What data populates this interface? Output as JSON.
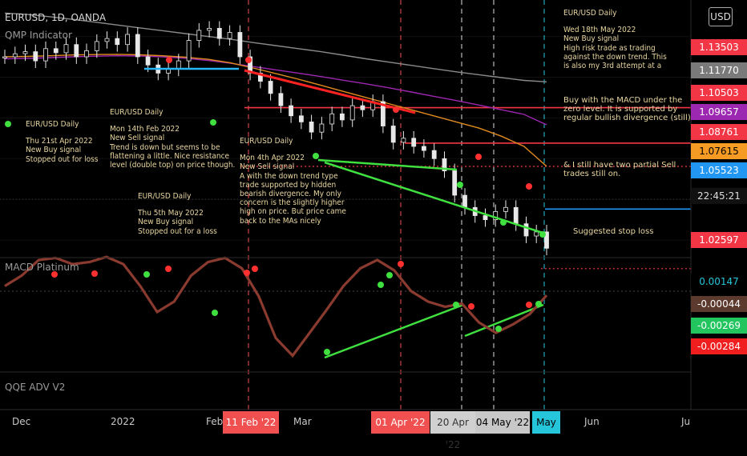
{
  "header": {
    "symbol": "EURUSD, 1D, OANDA",
    "indicator1": "QMP Indicator",
    "indicator2": "MACD Platinum",
    "indicator3": "QQE ADV V2",
    "currency_button": "USD"
  },
  "annotations": {
    "a1": {
      "head": "EUR/USD Daily",
      "body": "Thu 21st Apr 2022\nNew Buy signal\nStopped out for loss"
    },
    "a2": {
      "head": "EUR/USD Daily",
      "body": "Mon 14th Feb 2022\nNew Sell signal\nTrend is down but seems to be\nflattening a little. Nice resistance\nlevel (double top) on price though."
    },
    "a3": {
      "head": "EUR/USD Daily",
      "body": "Thu 5th May 2022\nNew Buy signal\nStopped out for a loss"
    },
    "a4": {
      "head": "EUR/USD Daily",
      "body": "Mon 4th Apr 2022\nNew Sell signal\nA with the down trend type\ntrade supported by hidden\nbearish divergence. My only\nconcern is the slightly higher\nhigh on price. But price came\nback to the MAs nicely"
    },
    "a5": {
      "head": "EUR/USD Daily",
      "body": "Wed 18th May 2022\nNew Buy signal\nHigh risk trade as trading\nagainst the down trend. This\nis also my 3rd attempt at a"
    },
    "a6": "Buy with the MACD under the\nzero level. It is supported by\nregular bullish divergence (still)",
    "a7": "& I still have two partial Sell\ntrades still on.",
    "a8": "Suggested stop loss"
  },
  "price_tags": [
    {
      "label": "1.13503",
      "bg": "#f23645",
      "fg": "#ffffff"
    },
    {
      "label": "1.11770",
      "bg": "#7a7a7a",
      "fg": "#ffffff"
    },
    {
      "label": "1.10503",
      "bg": "#f23645",
      "fg": "#ffffff"
    },
    {
      "label": "1.09657",
      "bg": "#9c27b0",
      "fg": "#ffffff"
    },
    {
      "label": "1.08761",
      "bg": "#f23645",
      "fg": "#ffffff"
    },
    {
      "label": "1.07615",
      "bg": "#f59a23",
      "fg": "#000000"
    },
    {
      "label": "1.05523",
      "bg": "#2196f3",
      "fg": "#ffffff"
    },
    {
      "label": "22:45:21",
      "bg": "#111111",
      "fg": "#dddddd"
    },
    {
      "label": "1.02597",
      "bg": "#f23645",
      "fg": "#ffffff"
    }
  ],
  "macd_tags": [
    {
      "label": "0.00147",
      "bg": "#000000",
      "fg": "#26c6da"
    },
    {
      "label": "-0.00044",
      "bg": "#5d3a2e",
      "fg": "#ffffff"
    },
    {
      "label": "-0.00269",
      "bg": "#22c55e",
      "fg": "#ffffff"
    },
    {
      "label": "-0.00284",
      "bg": "#f01e1e",
      "fg": "#ffffff"
    }
  ],
  "x_axis": {
    "labels": [
      "Dec",
      "2022",
      "Feb",
      "Mar",
      "Jun",
      "Ju"
    ],
    "highlights": [
      {
        "label": "11 Feb '22",
        "bg": "#f05050",
        "fg": "#ffffff"
      },
      {
        "label": "01 Apr '22",
        "bg": "#f05050",
        "fg": "#ffffff"
      },
      {
        "label": "20 Apr '22",
        "bg": "#d0d0d0",
        "fg": "#333333"
      },
      {
        "label": "04 May '22",
        "bg": "#c8c8c8",
        "fg": "#000000"
      },
      {
        "label": "May '22",
        "bg": "#26c6da",
        "fg": "#000000"
      }
    ]
  },
  "chart_data": {
    "type": "candlestick",
    "timeframe": "1D",
    "ylim": [
      1.02,
      1.155
    ],
    "price": {
      "ma_gray": [
        1.1515,
        1.1508,
        1.1497,
        1.1484,
        1.147,
        1.1456,
        1.1442,
        1.1428,
        1.1414,
        1.14,
        1.1386,
        1.137,
        1.1355,
        1.134,
        1.1325,
        1.1308,
        1.129,
        1.1274,
        1.1258,
        1.1242,
        1.1226,
        1.1212,
        1.1198,
        1.1184,
        1.1177
      ],
      "ma_purple": [
        1.129,
        1.1292,
        1.1296,
        1.13,
        1.1303,
        1.1305,
        1.1304,
        1.13,
        1.1293,
        1.1282,
        1.1268,
        1.1252,
        1.1236,
        1.122,
        1.1203,
        1.1185,
        1.1167,
        1.1148,
        1.1127,
        1.1106,
        1.1085,
        1.1063,
        1.104,
        1.1017,
        1.0966
      ],
      "ma_orange": [
        1.13,
        1.1302,
        1.1305,
        1.1309,
        1.1311,
        1.1312,
        1.131,
        1.1305,
        1.1298,
        1.1288,
        1.127,
        1.1245,
        1.1218,
        1.119,
        1.116,
        1.113,
        1.11,
        1.107,
        1.104,
        1.101,
        1.098,
        1.095,
        1.091,
        1.086,
        1.0762
      ],
      "candles_mid": [
        1.13,
        1.1315,
        1.1325,
        1.128,
        1.134,
        1.132,
        1.136,
        1.13,
        1.133,
        1.1375,
        1.139,
        1.136,
        1.141,
        1.13,
        1.126,
        1.122,
        1.124,
        1.128,
        1.138,
        1.143,
        1.144,
        1.139,
        1.142,
        1.13,
        1.122,
        1.118,
        1.112,
        1.106,
        1.101,
        1.098,
        1.093,
        1.097,
        1.102,
        1.099,
        1.106,
        1.104,
        1.108,
        1.096,
        1.088,
        1.09,
        1.086,
        1.084,
        1.08,
        1.074,
        1.062,
        1.056,
        1.052,
        1.05,
        1.054,
        1.056,
        1.048,
        1.042,
        1.044,
        1.036
      ]
    },
    "levels": [
      {
        "price": 1.10503,
        "style": "solid",
        "color": "#f23645"
      },
      {
        "price": 1.08761,
        "style": "solid",
        "color": "#f23645"
      },
      {
        "price": 1.07615,
        "style": "dotted",
        "color": "#f23645"
      },
      {
        "price": 1.02597,
        "style": "dotted",
        "color": "#f23645"
      },
      {
        "price": 1.05523,
        "style": "solid",
        "color": "#2196f3"
      }
    ],
    "macd": {
      "zero_line": 0,
      "values": [
        0.0005,
        0.0015,
        0.003,
        0.0032,
        0.0026,
        0.0028,
        0.0033,
        0.0026,
        0.0005,
        -0.002,
        -0.001,
        0.0015,
        0.0028,
        0.0032,
        0.0022,
        -0.0005,
        -0.0045,
        -0.0062,
        -0.004,
        -0.0018,
        0.0005,
        0.0022,
        0.003,
        0.002,
        0.0,
        -0.001,
        -0.0015,
        -0.0012,
        -0.003,
        -0.004,
        -0.0032,
        -0.0022,
        -0.0004
      ]
    },
    "vertical_markers": [
      {
        "date": "11 Feb '22",
        "color": "#f05050"
      },
      {
        "date": "01 Apr '22",
        "color": "#f05050"
      },
      {
        "date": "20 Apr '22",
        "color": "#dddddd"
      },
      {
        "date": "04 May '22",
        "color": "#dddddd"
      },
      {
        "date": "May '22",
        "color": "#26c6da"
      }
    ]
  }
}
